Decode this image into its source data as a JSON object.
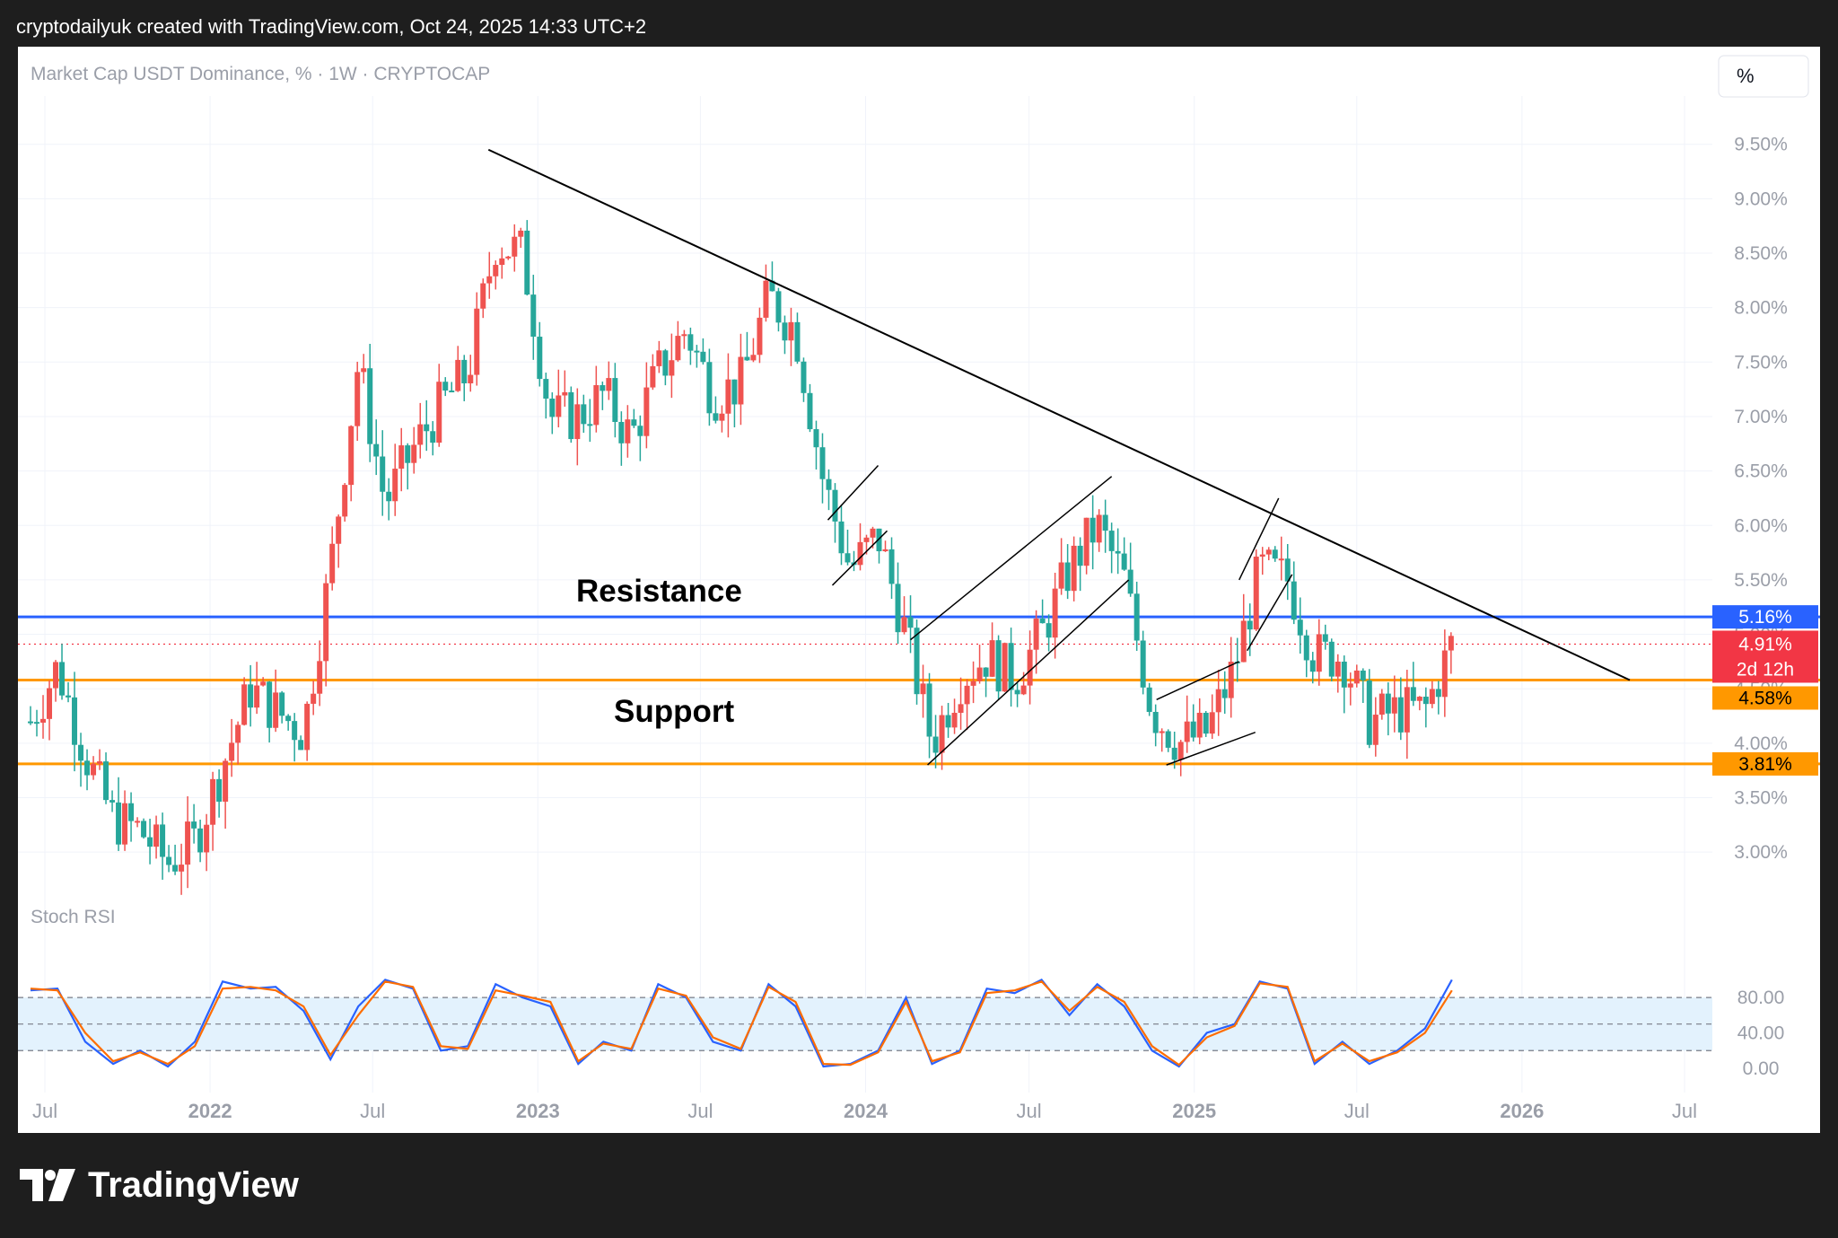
{
  "header": {
    "author_line": "cryptodailyuk created with TradingView.com, Oct 24, 2025 14:33 UTC+2"
  },
  "legend": {
    "symbol": "Market Cap USDT Dominance, % · 1W · CRYPTOCAP"
  },
  "scale_button": "%",
  "indicator": {
    "name": "Stoch RSI"
  },
  "annotations": {
    "resistance": "Resistance",
    "support": "Support"
  },
  "price_badges": {
    "resistance": "5.16%",
    "current": "4.91%",
    "countdown": "2d 12h",
    "support": "4.58%",
    "lower_support": "3.81%"
  },
  "footer": {
    "brand": "TradingView"
  },
  "colors": {
    "up": "#26a69a",
    "down": "#ef5350",
    "resistance_line": "#2962ff",
    "support_line": "#ff9800",
    "current_badge": "#f23645",
    "stoch_k": "#2962ff",
    "stoch_d": "#ff6d00",
    "stoch_band": "#e3f2fd"
  },
  "chart_data": [
    {
      "type": "candlestick",
      "title": "Market Cap USDT Dominance, % · 1W · CRYPTOCAP",
      "y_unit": "%",
      "y_ticks": [
        "3.00%",
        "3.50%",
        "4.00%",
        "4.50%",
        "5.00%",
        "5.50%",
        "6.00%",
        "6.50%",
        "7.00%",
        "7.50%",
        "8.00%",
        "8.50%",
        "9.00%",
        "9.50%"
      ],
      "ylim": [
        2.5,
        9.9
      ],
      "x_ticks": [
        "Jul",
        "2022",
        "Jul",
        "2023",
        "Jul",
        "2024",
        "Jul",
        "2025",
        "Jul",
        "2026",
        "Jul"
      ],
      "x_range": [
        "2021-06",
        "2026-08"
      ],
      "last_value": 4.91,
      "horizontal_levels": [
        {
          "label": "Resistance",
          "value": 5.16
        },
        {
          "label": "Support",
          "value": 4.58
        },
        {
          "label": "",
          "value": 3.81
        }
      ],
      "trendline": {
        "from": {
          "date": "2022-11-07",
          "value": 9.45
        },
        "to": {
          "date": "2026-05-01",
          "value": 4.58
        }
      },
      "weekly_closes_approx": [
        {
          "date": "2021-06",
          "value": 4.2
        },
        {
          "date": "2021-07",
          "value": 4.7
        },
        {
          "date": "2021-08",
          "value": 3.9
        },
        {
          "date": "2021-09",
          "value": 3.3
        },
        {
          "date": "2021-10",
          "value": 3.2
        },
        {
          "date": "2021-11",
          "value": 2.9
        },
        {
          "date": "2021-12",
          "value": 3.1
        },
        {
          "date": "2022-01",
          "value": 3.8
        },
        {
          "date": "2022-02",
          "value": 4.5
        },
        {
          "date": "2022-03",
          "value": 4.3
        },
        {
          "date": "2022-04",
          "value": 4.1
        },
        {
          "date": "2022-05",
          "value": 5.6
        },
        {
          "date": "2022-06",
          "value": 7.5
        },
        {
          "date": "2022-07",
          "value": 6.2
        },
        {
          "date": "2022-08",
          "value": 6.7
        },
        {
          "date": "2022-09",
          "value": 7.1
        },
        {
          "date": "2022-10",
          "value": 7.4
        },
        {
          "date": "2022-11",
          "value": 8.6
        },
        {
          "date": "2022-12",
          "value": 8.5
        },
        {
          "date": "2023-01",
          "value": 7.0
        },
        {
          "date": "2023-02",
          "value": 7.0
        },
        {
          "date": "2023-03",
          "value": 7.2
        },
        {
          "date": "2023-04",
          "value": 6.8
        },
        {
          "date": "2023-05",
          "value": 7.4
        },
        {
          "date": "2023-06",
          "value": 7.8
        },
        {
          "date": "2023-07",
          "value": 7.2
        },
        {
          "date": "2023-08",
          "value": 7.3
        },
        {
          "date": "2023-09",
          "value": 8.1
        },
        {
          "date": "2023-10",
          "value": 7.8
        },
        {
          "date": "2023-11",
          "value": 6.4
        },
        {
          "date": "2023-12",
          "value": 5.6
        },
        {
          "date": "2024-01",
          "value": 5.9
        },
        {
          "date": "2024-02",
          "value": 5.0
        },
        {
          "date": "2024-03",
          "value": 4.0
        },
        {
          "date": "2024-04",
          "value": 4.6
        },
        {
          "date": "2024-05",
          "value": 4.8
        },
        {
          "date": "2024-06",
          "value": 4.6
        },
        {
          "date": "2024-07",
          "value": 5.0
        },
        {
          "date": "2024-08",
          "value": 5.6
        },
        {
          "date": "2024-09",
          "value": 6.0
        },
        {
          "date": "2024-10",
          "value": 5.5
        },
        {
          "date": "2024-11",
          "value": 4.3
        },
        {
          "date": "2024-12",
          "value": 4.0
        },
        {
          "date": "2025-01",
          "value": 4.1
        },
        {
          "date": "2025-02",
          "value": 4.7
        },
        {
          "date": "2025-03",
          "value": 5.6
        },
        {
          "date": "2025-04",
          "value": 5.5
        },
        {
          "date": "2025-05",
          "value": 4.8
        },
        {
          "date": "2025-06",
          "value": 4.8
        },
        {
          "date": "2025-07",
          "value": 4.2
        },
        {
          "date": "2025-08",
          "value": 4.3
        },
        {
          "date": "2025-09",
          "value": 4.3
        },
        {
          "date": "2025-10",
          "value": 4.91
        }
      ]
    },
    {
      "type": "line",
      "title": "Stoch RSI",
      "y_ticks": [
        "0.00",
        "40.00",
        "80.00"
      ],
      "ylim": [
        -5,
        135
      ],
      "band": [
        20,
        80
      ],
      "midline": 50,
      "series": [
        {
          "name": "",
          "points": [
            {
              "date": "2021-06",
              "value": 88
            },
            {
              "date": "2021-07",
              "value": 90
            },
            {
              "date": "2021-08",
              "value": 30
            },
            {
              "date": "2021-09",
              "value": 5
            },
            {
              "date": "2021-10",
              "value": 20
            },
            {
              "date": "2021-11",
              "value": 2
            },
            {
              "date": "2021-12",
              "value": 30
            },
            {
              "date": "2022-01",
              "value": 98
            },
            {
              "date": "2022-02",
              "value": 90
            },
            {
              "date": "2022-03",
              "value": 92
            },
            {
              "date": "2022-04",
              "value": 65
            },
            {
              "date": "2022-05",
              "value": 10
            },
            {
              "date": "2022-06",
              "value": 70
            },
            {
              "date": "2022-07",
              "value": 100
            },
            {
              "date": "2022-08",
              "value": 90
            },
            {
              "date": "2022-09",
              "value": 20
            },
            {
              "date": "2022-10",
              "value": 25
            },
            {
              "date": "2022-11",
              "value": 95
            },
            {
              "date": "2022-12",
              "value": 80
            },
            {
              "date": "2023-01",
              "value": 70
            },
            {
              "date": "2023-02",
              "value": 5
            },
            {
              "date": "2023-03",
              "value": 30
            },
            {
              "date": "2023-04",
              "value": 20
            },
            {
              "date": "2023-05",
              "value": 95
            },
            {
              "date": "2023-06",
              "value": 80
            },
            {
              "date": "2023-07",
              "value": 30
            },
            {
              "date": "2023-08",
              "value": 20
            },
            {
              "date": "2023-09",
              "value": 95
            },
            {
              "date": "2023-10",
              "value": 70
            },
            {
              "date": "2023-11",
              "value": 2
            },
            {
              "date": "2023-12",
              "value": 5
            },
            {
              "date": "2024-01",
              "value": 20
            },
            {
              "date": "2024-02",
              "value": 80
            },
            {
              "date": "2024-03",
              "value": 5
            },
            {
              "date": "2024-04",
              "value": 20
            },
            {
              "date": "2024-05",
              "value": 90
            },
            {
              "date": "2024-06",
              "value": 85
            },
            {
              "date": "2024-07",
              "value": 100
            },
            {
              "date": "2024-08",
              "value": 60
            },
            {
              "date": "2024-09",
              "value": 95
            },
            {
              "date": "2024-10",
              "value": 70
            },
            {
              "date": "2024-11",
              "value": 20
            },
            {
              "date": "2024-12",
              "value": 2
            },
            {
              "date": "2025-01",
              "value": 40
            },
            {
              "date": "2025-02",
              "value": 50
            },
            {
              "date": "2025-03",
              "value": 98
            },
            {
              "date": "2025-04",
              "value": 90
            },
            {
              "date": "2025-05",
              "value": 5
            },
            {
              "date": "2025-06",
              "value": 30
            },
            {
              "date": "2025-07",
              "value": 5
            },
            {
              "date": "2025-08",
              "value": 20
            },
            {
              "date": "2025-09",
              "value": 45
            },
            {
              "date": "2025-10",
              "value": 100
            }
          ]
        },
        {
          "name": "",
          "points": [
            {
              "date": "2021-06",
              "value": 90
            },
            {
              "date": "2021-07",
              "value": 88
            },
            {
              "date": "2021-08",
              "value": 40
            },
            {
              "date": "2021-09",
              "value": 8
            },
            {
              "date": "2021-10",
              "value": 18
            },
            {
              "date": "2021-11",
              "value": 5
            },
            {
              "date": "2021-12",
              "value": 25
            },
            {
              "date": "2022-01",
              "value": 90
            },
            {
              "date": "2022-02",
              "value": 92
            },
            {
              "date": "2022-03",
              "value": 88
            },
            {
              "date": "2022-04",
              "value": 70
            },
            {
              "date": "2022-05",
              "value": 15
            },
            {
              "date": "2022-06",
              "value": 60
            },
            {
              "date": "2022-07",
              "value": 98
            },
            {
              "date": "2022-08",
              "value": 92
            },
            {
              "date": "2022-09",
              "value": 25
            },
            {
              "date": "2022-10",
              "value": 22
            },
            {
              "date": "2022-11",
              "value": 88
            },
            {
              "date": "2022-12",
              "value": 82
            },
            {
              "date": "2023-01",
              "value": 75
            },
            {
              "date": "2023-02",
              "value": 8
            },
            {
              "date": "2023-03",
              "value": 28
            },
            {
              "date": "2023-04",
              "value": 22
            },
            {
              "date": "2023-05",
              "value": 90
            },
            {
              "date": "2023-06",
              "value": 82
            },
            {
              "date": "2023-07",
              "value": 35
            },
            {
              "date": "2023-08",
              "value": 22
            },
            {
              "date": "2023-09",
              "value": 92
            },
            {
              "date": "2023-10",
              "value": 75
            },
            {
              "date": "2023-11",
              "value": 5
            },
            {
              "date": "2023-12",
              "value": 4
            },
            {
              "date": "2024-01",
              "value": 18
            },
            {
              "date": "2024-02",
              "value": 75
            },
            {
              "date": "2024-03",
              "value": 8
            },
            {
              "date": "2024-04",
              "value": 18
            },
            {
              "date": "2024-05",
              "value": 85
            },
            {
              "date": "2024-06",
              "value": 88
            },
            {
              "date": "2024-07",
              "value": 98
            },
            {
              "date": "2024-08",
              "value": 65
            },
            {
              "date": "2024-09",
              "value": 92
            },
            {
              "date": "2024-10",
              "value": 75
            },
            {
              "date": "2024-11",
              "value": 25
            },
            {
              "date": "2024-12",
              "value": 4
            },
            {
              "date": "2025-01",
              "value": 35
            },
            {
              "date": "2025-02",
              "value": 48
            },
            {
              "date": "2025-03",
              "value": 96
            },
            {
              "date": "2025-04",
              "value": 92
            },
            {
              "date": "2025-05",
              "value": 8
            },
            {
              "date": "2025-06",
              "value": 28
            },
            {
              "date": "2025-07",
              "value": 8
            },
            {
              "date": "2025-08",
              "value": 18
            },
            {
              "date": "2025-09",
              "value": 40
            },
            {
              "date": "2025-10",
              "value": 88
            }
          ]
        }
      ]
    }
  ]
}
